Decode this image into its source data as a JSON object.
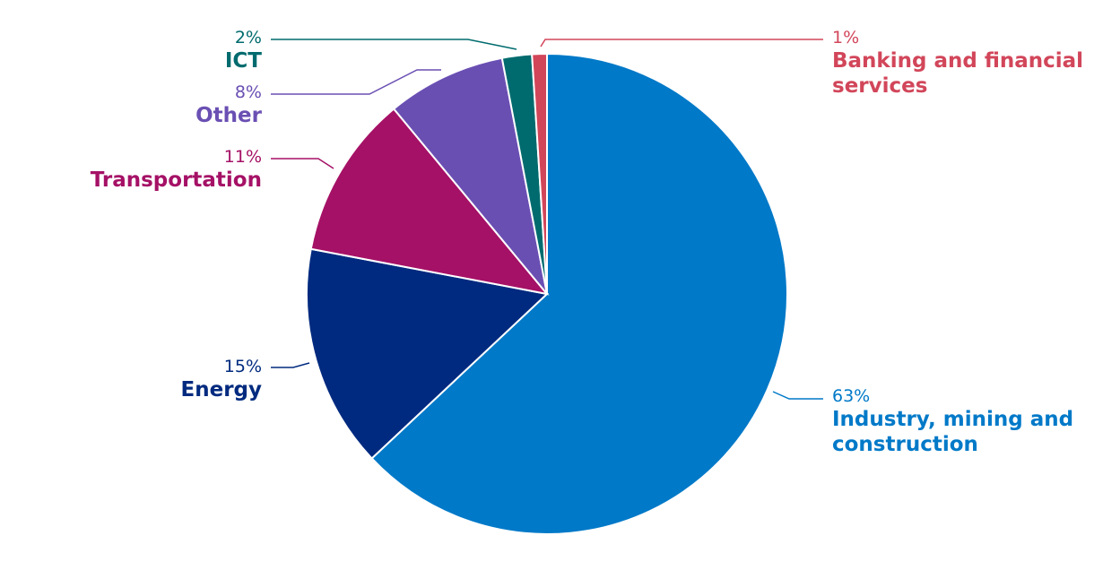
{
  "chart_data": {
    "type": "pie",
    "categories": [
      "Industry, mining and construction",
      "Energy",
      "Transportation",
      "Other",
      "ICT",
      "Banking and financial services"
    ],
    "values": [
      63,
      15,
      11,
      8,
      2,
      1
    ],
    "value_labels": [
      "63%",
      "15%",
      "11%",
      "8%",
      "2%",
      "1%"
    ],
    "colors": [
      "#0079c8",
      "#002a7f",
      "#a51166",
      "#6a4fb3",
      "#006b6e",
      "#d2465a"
    ]
  }
}
